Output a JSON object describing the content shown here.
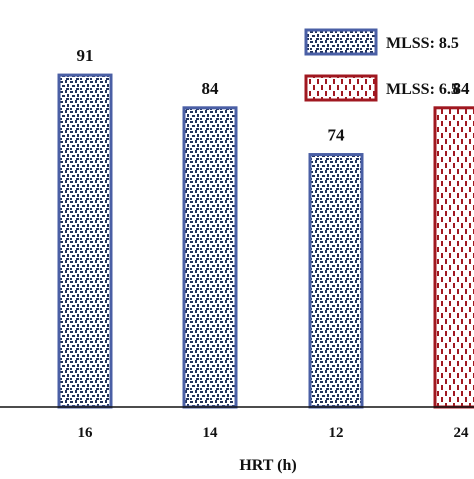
{
  "chart_data": {
    "type": "bar",
    "categories": [
      "16",
      "14",
      "12",
      "24"
    ],
    "values": [
      91,
      84,
      74,
      84
    ],
    "series_index": [
      0,
      0,
      0,
      1
    ],
    "series": [
      {
        "name": "MLSS: 8.5",
        "pattern": "blue-speckle"
      },
      {
        "name": "MLSS: 6.5",
        "pattern": "red-dash"
      }
    ],
    "data_labels": [
      "91",
      "84",
      "74",
      "84"
    ],
    "xlabel": "HRT (h)",
    "ylabel": "",
    "ylim": [
      20,
      100
    ],
    "grid": false,
    "legend_position": "top-right"
  },
  "colors": {
    "series0_border": "#4a5fa5",
    "series0_fill": "#22335e",
    "series1_border": "#a01820",
    "series1_fill": "#a01820",
    "axis": "#111111",
    "background": "#ffffff"
  }
}
